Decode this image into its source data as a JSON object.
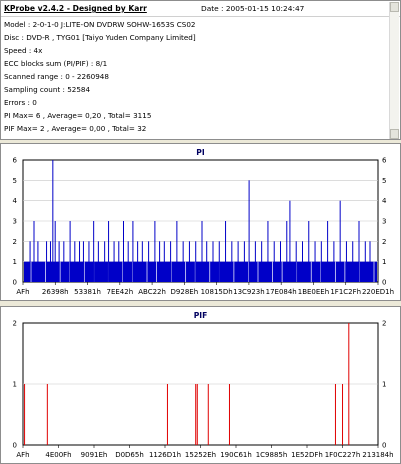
{
  "info": {
    "title": "KProbe v2.4.2 - Designed by Karr",
    "date": "Date : 2005-01-15 10:24:47",
    "lines": [
      "Model : 2-0-1-0 J:LITE-ON DVDRW SOHW-1653S CS02",
      "Disc : DVD-R , TYG01 [Taiyo Yuden Company Limited]",
      "Speed : 4x",
      "ECC blocks sum (PI/PIF) : 8/1",
      "Scanned range : 0 - 2260948",
      "Sampling count : 52584",
      "Errors : 0",
      "PI Max= 6 , Average= 0,20 , Total= 3115",
      "PIF Max= 2 , Average= 0,00 , Total= 32"
    ]
  },
  "colors": {
    "pi_bar": "#0000c8",
    "pif_bar": "#e00000",
    "grid": "#c8c8c8",
    "title": "#000060"
  },
  "chart_data": [
    {
      "type": "bar",
      "title": "PI",
      "ylim": [
        0,
        6
      ],
      "yticks": [
        "0",
        "1",
        "2",
        "3",
        "4",
        "5",
        "6"
      ],
      "xtick_labels": [
        "AFh",
        "26398h",
        "53381h",
        "7EE42h",
        "ABC22h",
        "D928Eh",
        "10815Dh",
        "13C923h",
        "17E084h",
        "1BE0EEh",
        "1F1C2Fh",
        "220ED1h"
      ],
      "x_range": [
        0,
        2260948
      ],
      "baseline_value": 1,
      "spikes": [
        {
          "x": 45000,
          "y": 2
        },
        {
          "x": 70000,
          "y": 3
        },
        {
          "x": 95000,
          "y": 2
        },
        {
          "x": 150000,
          "y": 2
        },
        {
          "x": 175000,
          "y": 2
        },
        {
          "x": 190000,
          "y": 6
        },
        {
          "x": 205000,
          "y": 3
        },
        {
          "x": 230000,
          "y": 2
        },
        {
          "x": 260000,
          "y": 2
        },
        {
          "x": 300000,
          "y": 3
        },
        {
          "x": 330000,
          "y": 2
        },
        {
          "x": 360000,
          "y": 2
        },
        {
          "x": 385000,
          "y": 2
        },
        {
          "x": 420000,
          "y": 2
        },
        {
          "x": 450000,
          "y": 3
        },
        {
          "x": 480000,
          "y": 2
        },
        {
          "x": 520000,
          "y": 2
        },
        {
          "x": 545000,
          "y": 3
        },
        {
          "x": 580000,
          "y": 2
        },
        {
          "x": 610000,
          "y": 2
        },
        {
          "x": 640000,
          "y": 3
        },
        {
          "x": 670000,
          "y": 2
        },
        {
          "x": 700000,
          "y": 3
        },
        {
          "x": 730000,
          "y": 2
        },
        {
          "x": 760000,
          "y": 2
        },
        {
          "x": 800000,
          "y": 2
        },
        {
          "x": 840000,
          "y": 3
        },
        {
          "x": 870000,
          "y": 2
        },
        {
          "x": 900000,
          "y": 2
        },
        {
          "x": 940000,
          "y": 2
        },
        {
          "x": 980000,
          "y": 3
        },
        {
          "x": 1020000,
          "y": 2
        },
        {
          "x": 1060000,
          "y": 2
        },
        {
          "x": 1100000,
          "y": 2
        },
        {
          "x": 1140000,
          "y": 3
        },
        {
          "x": 1170000,
          "y": 2
        },
        {
          "x": 1210000,
          "y": 2
        },
        {
          "x": 1250000,
          "y": 2
        },
        {
          "x": 1290000,
          "y": 3
        },
        {
          "x": 1330000,
          "y": 2
        },
        {
          "x": 1370000,
          "y": 2
        },
        {
          "x": 1410000,
          "y": 2
        },
        {
          "x": 1440000,
          "y": 5
        },
        {
          "x": 1480000,
          "y": 2
        },
        {
          "x": 1520000,
          "y": 2
        },
        {
          "x": 1560000,
          "y": 3
        },
        {
          "x": 1600000,
          "y": 2
        },
        {
          "x": 1640000,
          "y": 2
        },
        {
          "x": 1680000,
          "y": 3
        },
        {
          "x": 1700000,
          "y": 4
        },
        {
          "x": 1740000,
          "y": 2
        },
        {
          "x": 1780000,
          "y": 2
        },
        {
          "x": 1820000,
          "y": 3
        },
        {
          "x": 1860000,
          "y": 2
        },
        {
          "x": 1900000,
          "y": 2
        },
        {
          "x": 1940000,
          "y": 3
        },
        {
          "x": 1980000,
          "y": 2
        },
        {
          "x": 2020000,
          "y": 4
        },
        {
          "x": 2060000,
          "y": 2
        },
        {
          "x": 2100000,
          "y": 2
        },
        {
          "x": 2140000,
          "y": 3
        },
        {
          "x": 2180000,
          "y": 2
        },
        {
          "x": 2210000,
          "y": 2
        }
      ]
    },
    {
      "type": "bar",
      "title": "PIF",
      "ylim": [
        0,
        2
      ],
      "yticks": [
        "0",
        "1",
        "2"
      ],
      "xtick_labels": [
        "AFh",
        "4E00Fh",
        "9091Eh",
        "D0D65h",
        "1126D1h",
        "15252Eh",
        "190C61h",
        "1C9885h",
        "1E52DFh",
        "1F0C227h",
        "213184h"
      ],
      "x_range": [
        0,
        2260948
      ],
      "baseline_value": 0,
      "spikes": [
        {
          "x": 10000,
          "y": 1
        },
        {
          "x": 155000,
          "y": 1
        },
        {
          "x": 920000,
          "y": 1
        },
        {
          "x": 1100000,
          "y": 1
        },
        {
          "x": 1110000,
          "y": 1
        },
        {
          "x": 1180000,
          "y": 1
        },
        {
          "x": 1315000,
          "y": 1
        },
        {
          "x": 1990000,
          "y": 1
        },
        {
          "x": 2035000,
          "y": 1
        },
        {
          "x": 2075000,
          "y": 2
        }
      ]
    }
  ]
}
